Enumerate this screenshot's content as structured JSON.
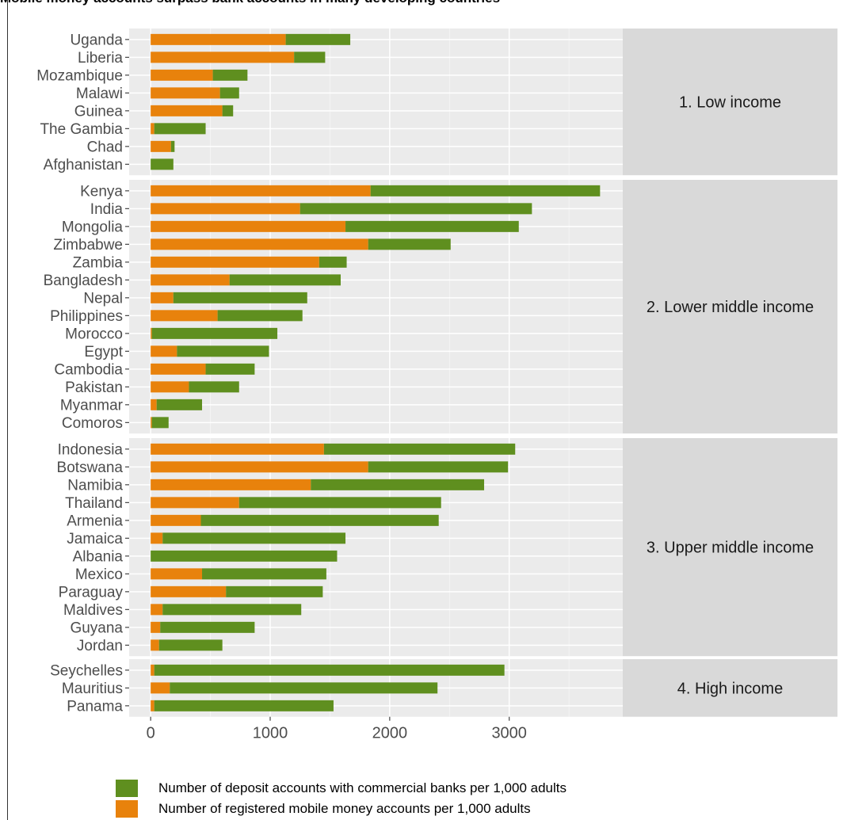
{
  "caption_fragment": "Mobile money accounts surpass bank accounts in many developing countries",
  "colors": {
    "deposit": "#5f8f1f",
    "mobile": "#e8820c",
    "panel_bg": "#ebebeb",
    "strip_bg": "#d9d9d9"
  },
  "legend": {
    "deposit_label": "Number of deposit accounts with commercial banks per 1,000 adults",
    "mobile_label": "Number of registered mobile money accounts per 1,000 adults"
  },
  "chart_data": {
    "type": "bar",
    "orientation": "horizontal",
    "stacked": true,
    "xlim": [
      -180,
      3950
    ],
    "x_ticks": [
      0,
      1000,
      2000,
      3000
    ],
    "grid": true,
    "legend_position": "bottom",
    "series_names": {
      "mobile": "Number of registered mobile money accounts per 1,000 adults",
      "deposit": "Number of deposit accounts with commercial banks per 1,000 adults"
    },
    "panels": [
      {
        "label": "1. Low income",
        "countries": [
          {
            "name": "Uganda",
            "mobile": 1130,
            "deposit": 540
          },
          {
            "name": "Liberia",
            "mobile": 1200,
            "deposit": 260
          },
          {
            "name": "Mozambique",
            "mobile": 520,
            "deposit": 290
          },
          {
            "name": "Malawi",
            "mobile": 580,
            "deposit": 160
          },
          {
            "name": "Guinea",
            "mobile": 600,
            "deposit": 90
          },
          {
            "name": "The Gambia",
            "mobile": 30,
            "deposit": 430
          },
          {
            "name": "Chad",
            "mobile": 170,
            "deposit": 30
          },
          {
            "name": "Afghanistan",
            "mobile": 0,
            "deposit": 190
          }
        ]
      },
      {
        "label": "2. Lower middle income",
        "countries": [
          {
            "name": "Kenya",
            "mobile": 1840,
            "deposit": 1920
          },
          {
            "name": "India",
            "mobile": 1250,
            "deposit": 1940
          },
          {
            "name": "Mongolia",
            "mobile": 1630,
            "deposit": 1450
          },
          {
            "name": "Zimbabwe",
            "mobile": 1820,
            "deposit": 690
          },
          {
            "name": "Zambia",
            "mobile": 1410,
            "deposit": 230
          },
          {
            "name": "Bangladesh",
            "mobile": 660,
            "deposit": 930
          },
          {
            "name": "Nepal",
            "mobile": 190,
            "deposit": 1120
          },
          {
            "name": "Philippines",
            "mobile": 560,
            "deposit": 710
          },
          {
            "name": "Morocco",
            "mobile": 10,
            "deposit": 1050
          },
          {
            "name": "Egypt",
            "mobile": 220,
            "deposit": 770
          },
          {
            "name": "Cambodia",
            "mobile": 460,
            "deposit": 410
          },
          {
            "name": "Pakistan",
            "mobile": 320,
            "deposit": 420
          },
          {
            "name": "Myanmar",
            "mobile": 50,
            "deposit": 380
          },
          {
            "name": "Comoros",
            "mobile": 10,
            "deposit": 140
          }
        ]
      },
      {
        "label": "3. Upper middle income",
        "countries": [
          {
            "name": "Indonesia",
            "mobile": 1450,
            "deposit": 1600
          },
          {
            "name": "Botswana",
            "mobile": 1820,
            "deposit": 1170
          },
          {
            "name": "Namibia",
            "mobile": 1340,
            "deposit": 1450
          },
          {
            "name": "Thailand",
            "mobile": 740,
            "deposit": 1690
          },
          {
            "name": "Armenia",
            "mobile": 420,
            "deposit": 1990
          },
          {
            "name": "Jamaica",
            "mobile": 100,
            "deposit": 1530
          },
          {
            "name": "Albania",
            "mobile": 0,
            "deposit": 1560
          },
          {
            "name": "Mexico",
            "mobile": 430,
            "deposit": 1040
          },
          {
            "name": "Paraguay",
            "mobile": 630,
            "deposit": 810
          },
          {
            "name": "Maldives",
            "mobile": 100,
            "deposit": 1160
          },
          {
            "name": "Guyana",
            "mobile": 80,
            "deposit": 790
          },
          {
            "name": "Jordan",
            "mobile": 70,
            "deposit": 530
          }
        ]
      },
      {
        "label": "4. High income",
        "countries": [
          {
            "name": "Seychelles",
            "mobile": 30,
            "deposit": 2930
          },
          {
            "name": "Mauritius",
            "mobile": 160,
            "deposit": 2240
          },
          {
            "name": "Panama",
            "mobile": 30,
            "deposit": 1500
          }
        ]
      }
    ]
  }
}
